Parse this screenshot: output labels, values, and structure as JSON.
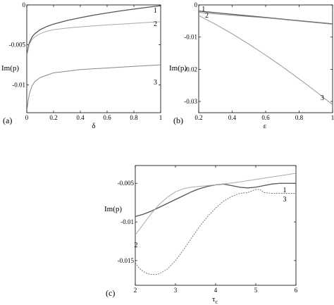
{
  "chart_data": [
    {
      "type": "line",
      "panel_label": "(a)",
      "xlabel": "δ",
      "ylabel": "Im(p)",
      "xlim": [
        0,
        1
      ],
      "ylim": [
        -0.0135,
        0
      ],
      "xticks": [
        "0",
        "0.2",
        "0.4",
        "0.6",
        "0.8",
        "1"
      ],
      "xtick_values": [
        0,
        0.2,
        0.4,
        0.6,
        0.8,
        1
      ],
      "yticks": [
        "0",
        "-0.005",
        "-0.01"
      ],
      "ytick_values": [
        0,
        -0.005,
        -0.01
      ],
      "series": [
        {
          "name": "1",
          "color": "#555555",
          "width": 1.3,
          "x": [
            0.005,
            0.01,
            0.02,
            0.04,
            0.06,
            0.1,
            0.15,
            0.2,
            0.3,
            0.4,
            0.5,
            0.6,
            0.7,
            0.8,
            0.9,
            1.0
          ],
          "y": [
            -0.0059,
            -0.0054,
            -0.0047,
            -0.004,
            -0.0036,
            -0.0031,
            -0.0027,
            -0.0024,
            -0.00195,
            -0.0016,
            -0.00128,
            -0.001,
            -0.00075,
            -0.00052,
            -0.0003,
            -0.0001
          ]
        },
        {
          "name": "2",
          "color": "#aaaaaa",
          "width": 1.0,
          "x": [
            0.005,
            0.01,
            0.02,
            0.04,
            0.06,
            0.1,
            0.15,
            0.2,
            0.3,
            0.4,
            0.5,
            0.6,
            0.7,
            0.8,
            0.9,
            1.0
          ],
          "y": [
            -0.0061,
            -0.0056,
            -0.0049,
            -0.0043,
            -0.004,
            -0.0036,
            -0.0033,
            -0.0031,
            -0.0029,
            -0.00275,
            -0.00262,
            -0.0025,
            -0.0024,
            -0.0023,
            -0.0022,
            -0.0021
          ]
        },
        {
          "name": "3",
          "color": "#888888",
          "width": 1.0,
          "x": [
            0.003,
            0.01,
            0.02,
            0.04,
            0.06,
            0.1,
            0.15,
            0.2,
            0.3,
            0.4,
            0.5,
            0.6,
            0.7,
            0.8,
            0.9,
            1.0
          ],
          "y": [
            -0.013,
            -0.012,
            -0.0111,
            -0.0101,
            -0.0096,
            -0.0091,
            -0.0088,
            -0.0085,
            -0.0083,
            -0.0081,
            -0.008,
            -0.0079,
            -0.0078,
            -0.0077,
            -0.0076,
            -0.0075
          ]
        }
      ],
      "annotations": [
        {
          "text": "1",
          "x": 1.0,
          "y": -0.0006
        },
        {
          "text": "2",
          "x": 1.0,
          "y": -0.0023
        },
        {
          "text": "3",
          "x": 1.0,
          "y": -0.0096
        }
      ]
    },
    {
      "type": "line",
      "panel_label": "(b)",
      "xlabel": "ε",
      "ylabel": "Im(p)",
      "xlim": [
        0.2,
        1
      ],
      "ylim": [
        -0.0335,
        0
      ],
      "xticks": [
        "0.2",
        "0.4",
        "0.6",
        "0.8",
        "1"
      ],
      "xtick_values": [
        0.2,
        0.4,
        0.6,
        0.8,
        1
      ],
      "yticks": [
        "0",
        "-0.01",
        "-0.02",
        "-0.03"
      ],
      "ytick_values": [
        0,
        -0.01,
        -0.02,
        -0.03
      ],
      "series": [
        {
          "name": "1",
          "color": "#555555",
          "width": 1.3,
          "x": [
            0.2,
            0.3,
            0.4,
            0.5,
            0.6,
            0.7,
            0.8,
            0.9,
            1.0
          ],
          "y": [
            -0.0019,
            -0.0024,
            -0.0029,
            -0.0034,
            -0.0039,
            -0.0044,
            -0.0049,
            -0.0054,
            -0.0059
          ]
        },
        {
          "name": "2",
          "color": "#888888",
          "width": 1.0,
          "x": [
            0.2,
            0.3,
            0.4,
            0.5,
            0.6,
            0.7,
            0.8,
            0.9,
            1.0
          ],
          "y": [
            -0.0023,
            -0.0028,
            -0.0032,
            -0.0036,
            -0.004,
            -0.0045,
            -0.005,
            -0.0055,
            -0.006
          ]
        },
        {
          "name": "3",
          "color": "#999999",
          "width": 1.0,
          "x": [
            0.2,
            0.3,
            0.4,
            0.5,
            0.6,
            0.7,
            0.8,
            0.9,
            1.0
          ],
          "y": [
            -0.0033,
            -0.006,
            -0.009,
            -0.0122,
            -0.0156,
            -0.0192,
            -0.023,
            -0.0269,
            -0.031
          ]
        }
      ],
      "annotations": [
        {
          "text": "1",
          "x": 0.26,
          "y": -0.0011
        },
        {
          "text": "2",
          "x": 0.28,
          "y": -0.0031
        },
        {
          "text": "3",
          "x": 0.97,
          "y": -0.0287
        }
      ]
    },
    {
      "type": "line",
      "panel_label": "(c)",
      "xlabel": "τc",
      "ylabel": "Im(p)",
      "xlim": [
        2,
        6
      ],
      "ylim": [
        -0.0182,
        -0.0027
      ],
      "xticks": [
        "2",
        "3",
        "4",
        "5",
        "6"
      ],
      "xtick_values": [
        2,
        3,
        4,
        5,
        6
      ],
      "yticks": [
        "-0.005",
        "-0.01",
        "-0.015"
      ],
      "ytick_values": [
        -0.005,
        -0.01,
        -0.015
      ],
      "series": [
        {
          "name": "1",
          "color": "#555555",
          "width": 1.3,
          "x": [
            2.0,
            2.2,
            2.4,
            2.6,
            2.8,
            3.0,
            3.2,
            3.4,
            3.6,
            3.8,
            4.0,
            4.2,
            4.4,
            4.6,
            4.8,
            5.0,
            5.2,
            5.4,
            5.6,
            5.8,
            6.0
          ],
          "y": [
            -0.0093,
            -0.009,
            -0.0086,
            -0.0081,
            -0.0076,
            -0.0071,
            -0.0066,
            -0.0061,
            -0.0057,
            -0.0054,
            -0.0052,
            -0.0051,
            -0.0053,
            -0.0055,
            -0.0056,
            -0.0055,
            -0.0053,
            -0.0051,
            -0.005,
            -0.005,
            -0.005
          ]
        },
        {
          "name": "2",
          "color": "#aaaaaa",
          "width": 1.0,
          "x": [
            2.0,
            2.2,
            2.4,
            2.6,
            2.8,
            3.0,
            3.2,
            3.4,
            3.6,
            3.8,
            4.0,
            4.5,
            5.0,
            5.5,
            6.0
          ],
          "y": [
            -0.0117,
            -0.0103,
            -0.0089,
            -0.0077,
            -0.0068,
            -0.0061,
            -0.0057,
            -0.0055,
            -0.0054,
            -0.0053,
            -0.0052,
            -0.0049,
            -0.0045,
            -0.0041,
            -0.0037
          ]
        },
        {
          "name": "3",
          "color": "#777777",
          "width": 1.0,
          "dashed": true,
          "x": [
            2.0,
            2.1,
            2.2,
            2.3,
            2.4,
            2.5,
            2.6,
            2.8,
            3.0,
            3.2,
            3.4,
            3.6,
            3.8,
            4.0,
            4.2,
            4.4,
            4.6,
            4.8,
            4.9,
            5.0,
            5.1,
            5.2,
            5.4,
            5.6,
            5.8,
            6.0
          ],
          "y": [
            -0.0153,
            -0.016,
            -0.0164,
            -0.0167,
            -0.0168,
            -0.0168,
            -0.0167,
            -0.0161,
            -0.015,
            -0.0136,
            -0.0121,
            -0.0106,
            -0.0093,
            -0.0082,
            -0.0073,
            -0.0067,
            -0.0063,
            -0.0062,
            -0.006,
            -0.0058,
            -0.0058,
            -0.0062,
            -0.0063,
            -0.0063,
            -0.0063,
            -0.0063
          ]
        }
      ],
      "annotations": [
        {
          "text": "1",
          "x": 5.85,
          "y": -0.0058
        },
        {
          "text": "2",
          "x": 2.15,
          "y": -0.0129
        },
        {
          "text": "3",
          "x": 5.85,
          "y": -0.007
        }
      ]
    }
  ]
}
